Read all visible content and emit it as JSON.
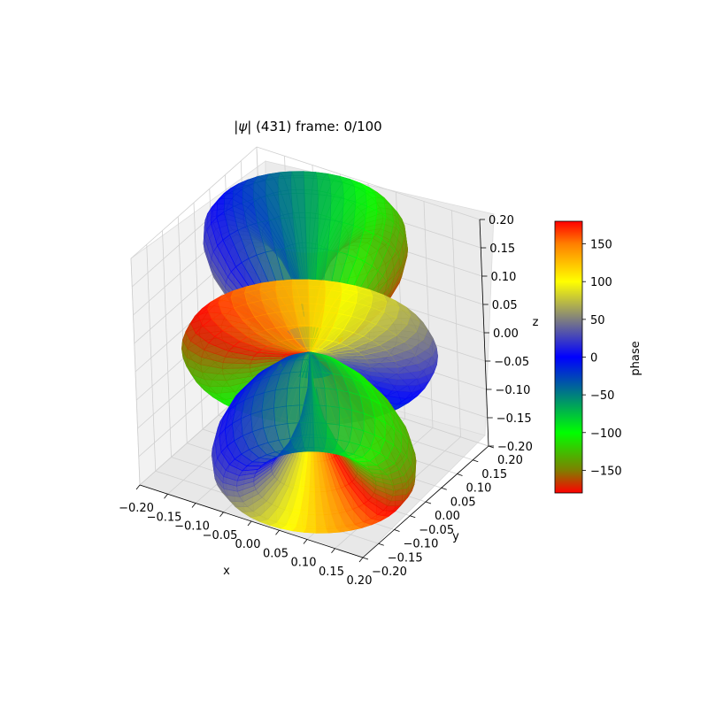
{
  "chart_data": {
    "type": "surface3d",
    "title_prefix": "|",
    "title_symbol": "ψ",
    "title_suffix": "| (431) frame: 0/100",
    "xlabel": "x",
    "ylabel": "y",
    "zlabel": "z",
    "xlim": [
      -0.2,
      0.2
    ],
    "ylim": [
      -0.2,
      0.2
    ],
    "zlim": [
      -0.2,
      0.2
    ],
    "x_ticks": [
      "−0.20",
      "−0.15",
      "−0.10",
      "−0.05",
      "0.00",
      "0.05",
      "0.10",
      "0.15",
      "0.20"
    ],
    "y_ticks": [
      "−0.20",
      "−0.15",
      "−0.10",
      "−0.05",
      "0.00",
      "0.05",
      "0.10",
      "0.15",
      "0.20"
    ],
    "z_ticks": [
      "−0.20",
      "−0.15",
      "−0.10",
      "−0.05",
      "0.00",
      "0.05",
      "0.10",
      "0.15",
      "0.20"
    ],
    "colorbar": {
      "label": "phase",
      "range": [
        -180,
        180
      ],
      "ticks": [
        "150",
        "100",
        "50",
        "0",
        "−50",
        "−100",
        "−150"
      ],
      "tick_values": [
        150,
        100,
        50,
        0,
        -50,
        -100,
        -150
      ],
      "stops": [
        {
          "value": -180,
          "color": "#ff0000"
        },
        {
          "value": -150,
          "color": "#7f7f00"
        },
        {
          "value": -100,
          "color": "#00ff00"
        },
        {
          "value": -50,
          "color": "#007f7f"
        },
        {
          "value": 0,
          "color": "#0000ff"
        },
        {
          "value": 50,
          "color": "#7f7f7f"
        },
        {
          "value": 100,
          "color": "#ffff00"
        },
        {
          "value": 150,
          "color": "#ff7f00"
        },
        {
          "value": 180,
          "color": "#ff0000"
        }
      ]
    },
    "orbital": {
      "n": 4,
      "l": 3,
      "m": 1
    },
    "grid": true
  }
}
